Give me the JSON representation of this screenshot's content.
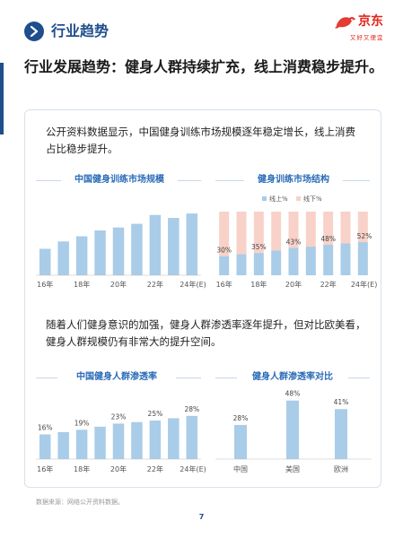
{
  "header": {
    "section_title": "行业趋势",
    "brand_name": "京东",
    "brand_slogan": "又好又便宜"
  },
  "headline": "行业发展趋势：健身人群持续扩充，线上消费稳步提升。",
  "paragraph_1": "公开资料数据显示，中国健身训练市场规模逐年稳定增长，线上消费占比稳步提升。",
  "paragraph_2": "随着人们健身意识的加强，健身人群渗透率逐年提升，但对比欧美看，健身人群规模仍有非常大的提升空间。",
  "footer": {
    "source": "数据来源：网络公开资料数据。",
    "page_number": "7"
  },
  "colors": {
    "bar_blue": "#a9cce8",
    "bar_pink": "#f8d2c8",
    "accent": "#1f4e8c",
    "title_blue": "#2a6bb8"
  },
  "chart_data": [
    {
      "type": "bar",
      "title": "中国健身训练市场规模",
      "categories": [
        "16年",
        "17年",
        "18年",
        "19年",
        "20年",
        "21年",
        "22年",
        "23年",
        "24年(E)"
      ],
      "tick_labels": [
        "16年",
        "18年",
        "20年",
        "22年",
        "24年(E)"
      ],
      "values": [
        36,
        46,
        53,
        61,
        65,
        70,
        82,
        78,
        84
      ],
      "ylim": [
        0,
        100
      ],
      "grid": false
    },
    {
      "type": "bar",
      "title": "健身训练市场结构",
      "stacked": true,
      "normalized": true,
      "categories": [
        "16年",
        "17年",
        "18年",
        "19年",
        "20年",
        "21年",
        "22年",
        "23年",
        "24年(E)"
      ],
      "tick_labels": [
        "16年",
        "18年",
        "20年",
        "22年",
        "24年(E)"
      ],
      "legend": "top",
      "series": [
        {
          "name": "线上%",
          "values": [
            30,
            33,
            35,
            39,
            43,
            45,
            48,
            50,
            52
          ]
        },
        {
          "name": "线下%",
          "values": [
            70,
            67,
            65,
            61,
            57,
            55,
            52,
            50,
            48
          ]
        }
      ],
      "data_labels": [
        {
          "category": "16年",
          "text": "30%"
        },
        {
          "category": "18年",
          "text": "35%"
        },
        {
          "category": "20年",
          "text": "43%"
        },
        {
          "category": "22年",
          "text": "48%"
        },
        {
          "category": "24年(E)",
          "text": "52%"
        }
      ],
      "ylim": [
        0,
        100
      ]
    },
    {
      "type": "bar",
      "title": "中国健身人群渗透率",
      "categories": [
        "16年",
        "17年",
        "18年",
        "19年",
        "20年",
        "21年",
        "22年",
        "23年",
        "24年(E)"
      ],
      "tick_labels": [
        "16年",
        "18年",
        "20年",
        "22年",
        "24年(E)"
      ],
      "values": [
        16,
        17.5,
        19,
        21,
        23,
        24,
        25,
        26.5,
        28
      ],
      "data_labels": [
        {
          "category": "16年",
          "text": "16%"
        },
        {
          "category": "18年",
          "text": "19%"
        },
        {
          "category": "20年",
          "text": "23%"
        },
        {
          "category": "22年",
          "text": "25%"
        },
        {
          "category": "24年(E)",
          "text": "28%"
        }
      ],
      "ylim": [
        0,
        50
      ]
    },
    {
      "type": "bar",
      "title": "健身人群渗透率对比",
      "categories": [
        "中国",
        "美国",
        "欧洲"
      ],
      "values": [
        28,
        48,
        41
      ],
      "data_labels": [
        "28%",
        "48%",
        "41%"
      ],
      "ylim": [
        0,
        50
      ]
    }
  ]
}
